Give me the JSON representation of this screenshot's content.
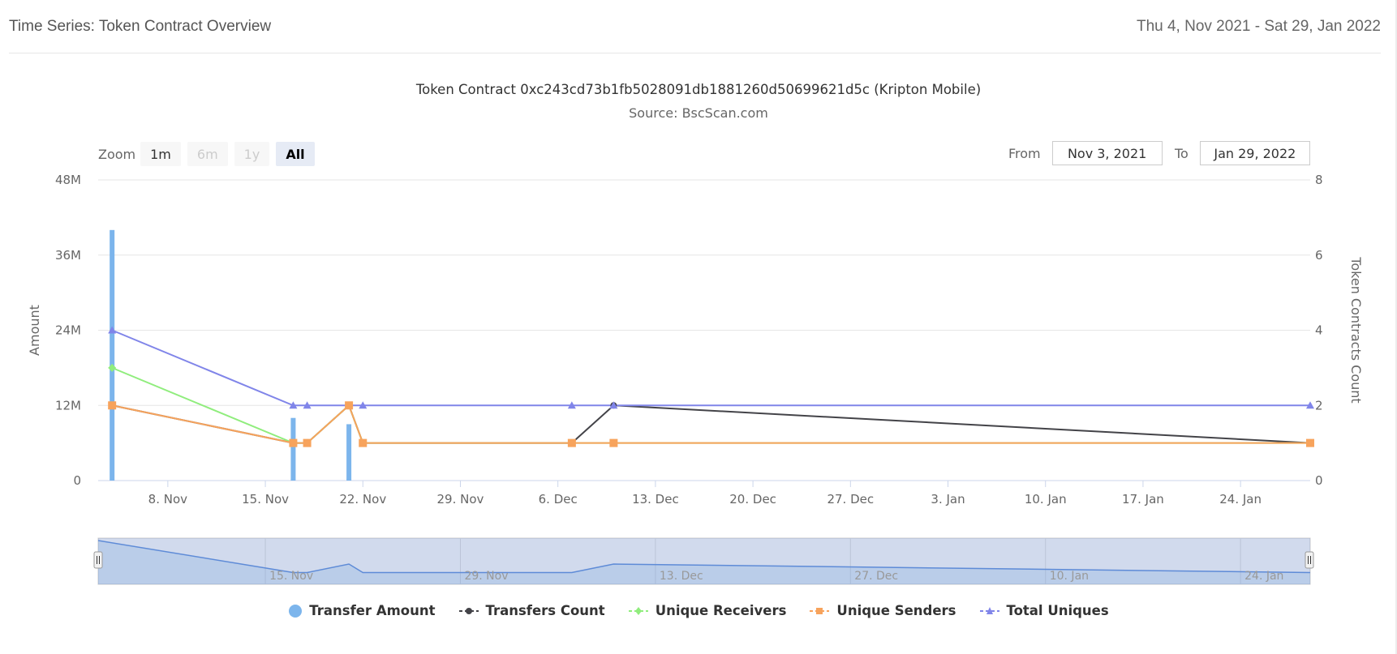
{
  "header": {
    "title": "Time Series: Token Contract Overview",
    "date_range": "Thu 4, Nov 2021 - Sat 29, Jan 2022"
  },
  "zoom": {
    "label": "Zoom",
    "buttons": [
      {
        "label": "1m",
        "state": "normal"
      },
      {
        "label": "6m",
        "state": "disabled"
      },
      {
        "label": "1y",
        "state": "disabled"
      },
      {
        "label": "All",
        "state": "active"
      }
    ]
  },
  "range": {
    "from_label": "From",
    "from_value": "Nov 3, 2021",
    "to_label": "To",
    "to_value": "Jan 29, 2022"
  },
  "navigator": {
    "labels": [
      "15. Nov",
      "29. Nov",
      "13. Dec",
      "27. Dec",
      "10. Jan",
      "24. Jan"
    ]
  },
  "chart_data": {
    "type": "line",
    "title": "Token Contract 0xc243cd73b1fb5028091db1881260d50699621d5c (Kripton Mobile)",
    "subtitle": "Source: BscScan.com",
    "x_range": [
      "2021-11-03",
      "2022-01-29"
    ],
    "x_tick_labels": [
      "8. Nov",
      "15. Nov",
      "22. Nov",
      "29. Nov",
      "6. Dec",
      "13. Dec",
      "20. Dec",
      "27. Dec",
      "3. Jan",
      "10. Jan",
      "17. Jan",
      "24. Jan"
    ],
    "y_left": {
      "label": "Amount",
      "ticks": [
        "0",
        "12M",
        "24M",
        "36M",
        "48M"
      ],
      "range": [
        0,
        48000000
      ]
    },
    "y_right": {
      "label": "Token Contracts Count",
      "ticks": [
        "0",
        "2",
        "4",
        "6",
        "8"
      ],
      "range": [
        0,
        8
      ]
    },
    "grid": true,
    "legend_position": "bottom",
    "series": [
      {
        "name": "Transfer Amount",
        "chart": "column",
        "axis": "left",
        "color": "#7cb5ec",
        "points": [
          {
            "x": "2021-11-04",
            "y": 40000000
          },
          {
            "x": "2021-11-17",
            "y": 10000000
          },
          {
            "x": "2021-11-21",
            "y": 9000000
          }
        ]
      },
      {
        "name": "Transfers Count",
        "chart": "line",
        "axis": "right",
        "color": "#434348",
        "marker": "circle",
        "points": [
          {
            "x": "2021-11-04",
            "y": 2
          },
          {
            "x": "2021-11-17",
            "y": 1
          },
          {
            "x": "2021-11-18",
            "y": 1
          },
          {
            "x": "2021-11-21",
            "y": 2
          },
          {
            "x": "2021-11-22",
            "y": 1
          },
          {
            "x": "2021-12-07",
            "y": 1
          },
          {
            "x": "2021-12-10",
            "y": 2
          },
          {
            "x": "2022-01-29",
            "y": 1
          }
        ]
      },
      {
        "name": "Unique Receivers",
        "chart": "line",
        "axis": "right",
        "color": "#90ed7d",
        "marker": "diamond",
        "points": [
          {
            "x": "2021-11-04",
            "y": 3
          },
          {
            "x": "2021-11-17",
            "y": 1
          },
          {
            "x": "2021-11-18",
            "y": 1
          },
          {
            "x": "2021-11-21",
            "y": 2
          },
          {
            "x": "2021-11-22",
            "y": 1
          },
          {
            "x": "2021-12-07",
            "y": 1
          },
          {
            "x": "2021-12-10",
            "y": 1
          },
          {
            "x": "2022-01-29",
            "y": 1
          }
        ]
      },
      {
        "name": "Unique Senders",
        "chart": "line",
        "axis": "right",
        "color": "#f7a35c",
        "marker": "square",
        "points": [
          {
            "x": "2021-11-04",
            "y": 2
          },
          {
            "x": "2021-11-17",
            "y": 1
          },
          {
            "x": "2021-11-18",
            "y": 1
          },
          {
            "x": "2021-11-21",
            "y": 2
          },
          {
            "x": "2021-11-22",
            "y": 1
          },
          {
            "x": "2021-12-07",
            "y": 1
          },
          {
            "x": "2021-12-10",
            "y": 1
          },
          {
            "x": "2022-01-29",
            "y": 1
          }
        ]
      },
      {
        "name": "Total Uniques",
        "chart": "line",
        "axis": "right",
        "color": "#8085e9",
        "marker": "triangle",
        "points": [
          {
            "x": "2021-11-04",
            "y": 4
          },
          {
            "x": "2021-11-17",
            "y": 2
          },
          {
            "x": "2021-11-18",
            "y": 2
          },
          {
            "x": "2021-11-21",
            "y": 2
          },
          {
            "x": "2021-11-22",
            "y": 2
          },
          {
            "x": "2021-12-07",
            "y": 2
          },
          {
            "x": "2021-12-10",
            "y": 2
          },
          {
            "x": "2022-01-29",
            "y": 2
          }
        ]
      }
    ]
  }
}
